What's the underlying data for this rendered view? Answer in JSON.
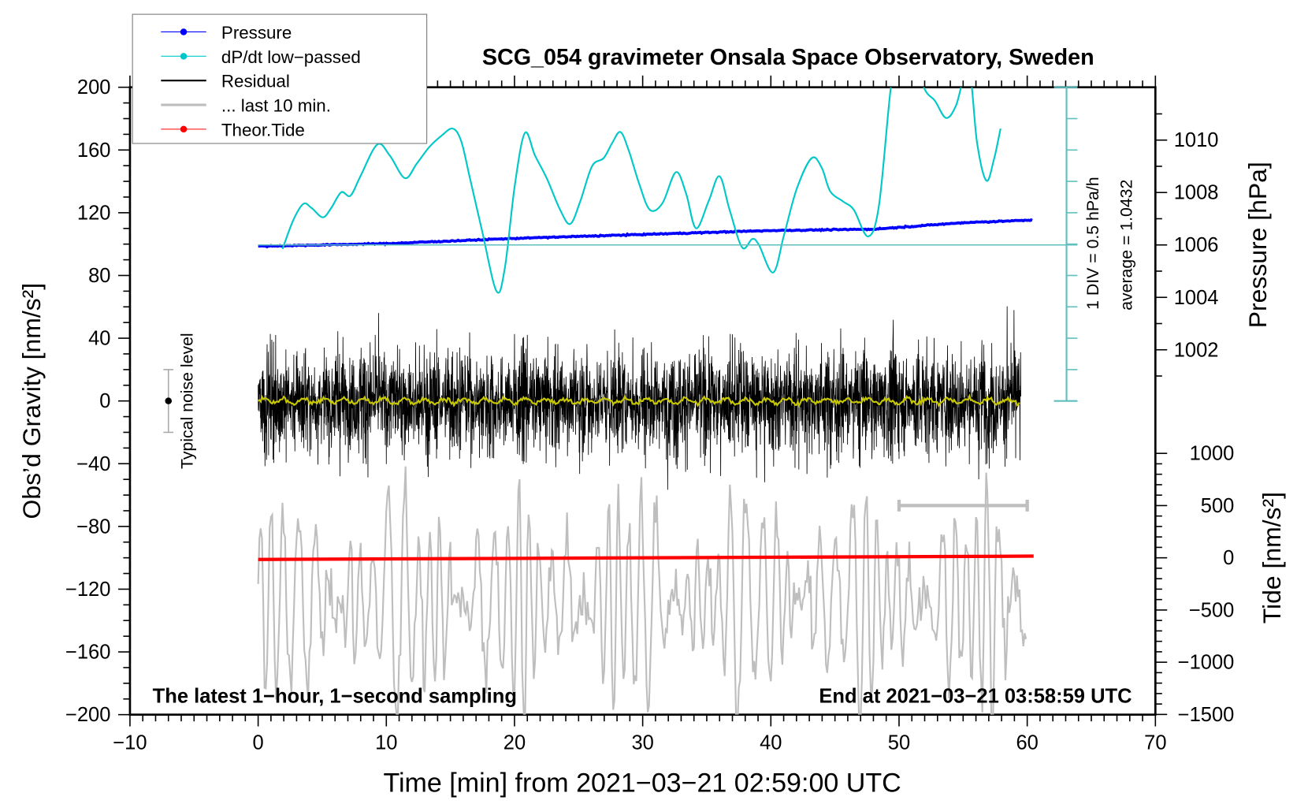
{
  "chart_data": {
    "type": "line",
    "title": "SCG_054 gravimeter Onsala Space Observatory, Sweden",
    "xlabel": "Time [min] from 2021−03−21 02:59:00 UTC",
    "ylabel": "Obs’d Gravity [nm/s²]",
    "ylabel_right_top": "Pressure [hPa]",
    "ylabel_right_bottom": "Tide [nm/s²]",
    "xlim": [
      -10,
      70
    ],
    "ylim": [
      -200,
      200
    ],
    "pressure_lim": [
      988,
      1012
    ],
    "tide_lim": [
      -1500,
      1500
    ],
    "x_ticks": [
      -10,
      0,
      10,
      20,
      30,
      40,
      50,
      60,
      70
    ],
    "x_tick_labels": [
      "−10",
      "0",
      "10",
      "20",
      "30",
      "40",
      "50",
      "60",
      "70"
    ],
    "y_ticks": [
      200,
      160,
      120,
      80,
      40,
      0,
      -40,
      -80,
      -120,
      -160,
      -200
    ],
    "y_tick_labels": [
      "200",
      "160",
      "120",
      "80",
      "40",
      "0",
      "−40",
      "−80",
      "−120",
      "−160",
      "−200"
    ],
    "pressure_ticks": [
      1010,
      1008,
      1006,
      1004,
      1002
    ],
    "pressure_tick_labels": [
      "1010",
      "1008",
      "1006",
      "1004",
      "1002"
    ],
    "tide_ticks": [
      1000,
      500,
      0,
      -500,
      -1000,
      -1500
    ],
    "tide_tick_labels": [
      "1000",
      "500",
      "0",
      "−500",
      "−1000",
      "−1500"
    ],
    "grid": false,
    "legend_position": "top-left",
    "legend": [
      {
        "label": "Pressure",
        "color": "#0000ff",
        "style": "line-dot"
      },
      {
        "label": "dP/dt low−passed",
        "color": "#00c8c8",
        "style": "line-dot"
      },
      {
        "label": "Residual",
        "color": "#000000",
        "style": "line"
      },
      {
        "label": "... last 10 min.",
        "color": "#bebebe",
        "style": "thick-line"
      },
      {
        "label": "Theor.Tide",
        "color": "#ff0000",
        "style": "line-dot"
      }
    ],
    "annotations": {
      "bottom_left": "The latest 1−hour, 1−second sampling",
      "bottom_right": "End at 2021−03−21 03:58:59 UTC",
      "div_scale": "1 DIV = 0.5 hPa/h",
      "average": "average = 1.0432",
      "noise_label": "Typical noise level"
    },
    "series": [
      {
        "name": "Pressure",
        "unit": "hPa",
        "x": [
          0,
          10,
          20,
          30,
          40,
          48,
          55,
          60.5
        ],
        "values": [
          1005.95,
          1006.05,
          1006.25,
          1006.4,
          1006.55,
          1006.6,
          1006.85,
          1006.95
        ]
      },
      {
        "name": "dP/dt low-passed",
        "unit": "DIV relative to average",
        "x": [
          1.9,
          2.75,
          3.53,
          4.19,
          5.04,
          5.69,
          6.48,
          7.2,
          7.98,
          9.29,
          10.27,
          11.45,
          12.37,
          13.35,
          14.27,
          15.18,
          15.84,
          16.49,
          17.47,
          18.59,
          19.24,
          20.03,
          20.81,
          21.6,
          22.51,
          23.56,
          24.35,
          25.13,
          26.05,
          26.96,
          27.62,
          28.27,
          28.93,
          29.71,
          30.56,
          31.54,
          32.59,
          33.38,
          34.16,
          35.14,
          35.99,
          36.78,
          37.76,
          38.55,
          39.07,
          40.18,
          41.03,
          42.02,
          43.19,
          43.98,
          44.63,
          45.62,
          46.47,
          47.58,
          48.43,
          49.35,
          50.2,
          51.83,
          52.81,
          53.66,
          54.45,
          55.43,
          56.09,
          56.81,
          57.4,
          57.92
        ],
        "values": [
          -0.13,
          0.8,
          1.31,
          1.17,
          0.88,
          1.17,
          1.68,
          1.57,
          2.19,
          3.2,
          2.85,
          2.13,
          2.59,
          3.12,
          3.47,
          3.71,
          3.31,
          2.19,
          0.45,
          -1.47,
          -0.75,
          1.92,
          3.57,
          2.85,
          2.13,
          1.12,
          0.67,
          1.39,
          2.51,
          2.77,
          3.25,
          3.6,
          2.99,
          1.97,
          1.12,
          1.33,
          2.32,
          1.65,
          0.53,
          1.39,
          2.19,
          1.12,
          -0.08,
          0.19,
          0,
          -0.88,
          0.32,
          1.79,
          2.77,
          2.45,
          1.71,
          1.39,
          1.12,
          0.27,
          1.25,
          4.99,
          7.25,
          5.12,
          4.59,
          4.05,
          4.45,
          5.65,
          3.25,
          2.05,
          2.72,
          3.71
        ]
      },
      {
        "name": "Residual",
        "unit": "nm/s2",
        "x_range": [
          0,
          59.5
        ],
        "sampling_s": 1,
        "typical_amplitude": 25,
        "max_abs": 85
      },
      {
        "name": "... last 10 min.",
        "unit": "nm/s2",
        "x_range": [
          0,
          60
        ],
        "offset": -128,
        "typical_amplitude": 40
      },
      {
        "name": "Theor.Tide",
        "unit": "nm/s2",
        "x": [
          0,
          60.5
        ],
        "values": [
          -16,
          16
        ]
      }
    ],
    "noise_bar": {
      "x": -7,
      "center": 0,
      "half_range": 20
    },
    "last10_bar": {
      "x_range": [
        50,
        60
      ],
      "tide_value": 500
    },
    "colors": {
      "pressure": "#0000ff",
      "dpdt": "#00c8c8",
      "residual": "#000000",
      "smoothed": "#c8c800",
      "last10": "#bebebe",
      "tide": "#ff0000",
      "div_axis": "#5fbfbf"
    }
  }
}
